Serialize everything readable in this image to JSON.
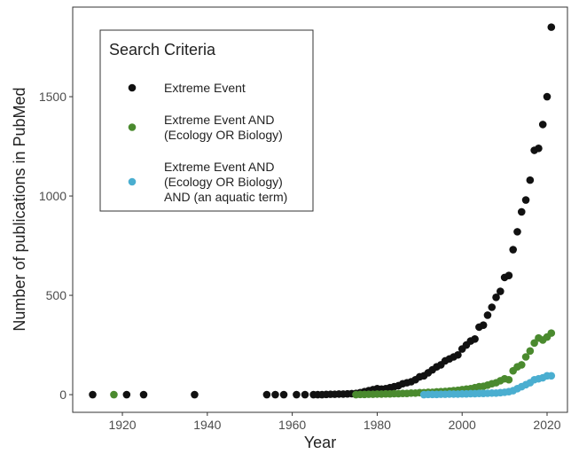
{
  "chart_data": {
    "type": "scatter",
    "x_label": "Year",
    "y_label": "Number of publications in PubMed",
    "legend_title": "Search Criteria",
    "legend": "top-left",
    "grid": false,
    "xlim": [
      1908.3,
      2024.8
    ],
    "xticks": [
      1920,
      1940,
      1960,
      1980,
      2000,
      2020
    ],
    "ylim": [
      -89,
      1951
    ],
    "yticks": [
      0,
      500,
      1000,
      1500
    ],
    "series": [
      {
        "name": "Extreme Event",
        "color": "#111111",
        "x": [
          1913,
          1921,
          1925,
          1937,
          1954,
          1956,
          1958,
          1961,
          1963,
          1965,
          1966,
          1967,
          1968,
          1969,
          1970,
          1971,
          1972,
          1973,
          1974,
          1975,
          1976,
          1977,
          1978,
          1979,
          1980,
          1981,
          1982,
          1983,
          1984,
          1985,
          1986,
          1987,
          1988,
          1989,
          1990,
          1991,
          1992,
          1993,
          1994,
          1995,
          1996,
          1997,
          1998,
          1999,
          2000,
          2001,
          2002,
          2003,
          2004,
          2005,
          2006,
          2007,
          2008,
          2009,
          2010,
          2011,
          2012,
          2013,
          2014,
          2015,
          2016,
          2017,
          2018,
          2019,
          2020,
          2021
        ],
        "values": [
          0,
          0,
          0,
          0,
          0,
          0,
          0,
          0,
          0,
          0,
          0,
          0,
          1,
          2,
          2,
          3,
          3,
          4,
          5,
          6,
          10,
          15,
          20,
          25,
          30,
          28,
          30,
          35,
          40,
          45,
          55,
          60,
          65,
          75,
          90,
          95,
          110,
          125,
          140,
          150,
          170,
          180,
          190,
          200,
          230,
          250,
          270,
          280,
          340,
          350,
          400,
          440,
          490,
          520,
          590,
          600,
          730,
          820,
          920,
          980,
          1080,
          1230,
          1240,
          1360,
          1500,
          1850
        ]
      },
      {
        "name": "Extreme Event AND\n(Ecology OR Biology)",
        "color": "#4a8a2e",
        "x": [
          1918,
          1975,
          1976,
          1977,
          1978,
          1979,
          1980,
          1981,
          1982,
          1983,
          1984,
          1985,
          1986,
          1987,
          1988,
          1989,
          1990,
          1991,
          1992,
          1993,
          1994,
          1995,
          1996,
          1997,
          1998,
          1999,
          2000,
          2001,
          2002,
          2003,
          2004,
          2005,
          2006,
          2007,
          2008,
          2009,
          2010,
          2011,
          2012,
          2013,
          2014,
          2015,
          2016,
          2017,
          2018,
          2019,
          2020,
          2021
        ],
        "values": [
          0,
          0,
          1,
          1,
          2,
          2,
          3,
          3,
          4,
          4,
          5,
          5,
          6,
          6,
          8,
          8,
          10,
          10,
          12,
          12,
          14,
          15,
          16,
          18,
          20,
          22,
          25,
          28,
          30,
          35,
          40,
          42,
          48,
          55,
          60,
          70,
          80,
          75,
          120,
          140,
          150,
          190,
          220,
          260,
          285,
          275,
          290,
          310
        ]
      },
      {
        "name": "Extreme Event AND\n(Ecology OR Biology)\nAND (an aquatic term)",
        "color": "#4aaed0",
        "x": [
          1991,
          1992,
          1993,
          1994,
          1995,
          1996,
          1997,
          1998,
          1999,
          2000,
          2001,
          2002,
          2003,
          2004,
          2005,
          2006,
          2007,
          2008,
          2009,
          2010,
          2011,
          2012,
          2013,
          2014,
          2015,
          2016,
          2017,
          2018,
          2019,
          2020,
          2021
        ],
        "values": [
          0,
          1,
          1,
          1,
          2,
          2,
          3,
          3,
          3,
          4,
          4,
          5,
          5,
          6,
          6,
          7,
          8,
          8,
          10,
          12,
          15,
          20,
          30,
          40,
          50,
          60,
          75,
          80,
          85,
          95,
          95
        ]
      }
    ]
  }
}
